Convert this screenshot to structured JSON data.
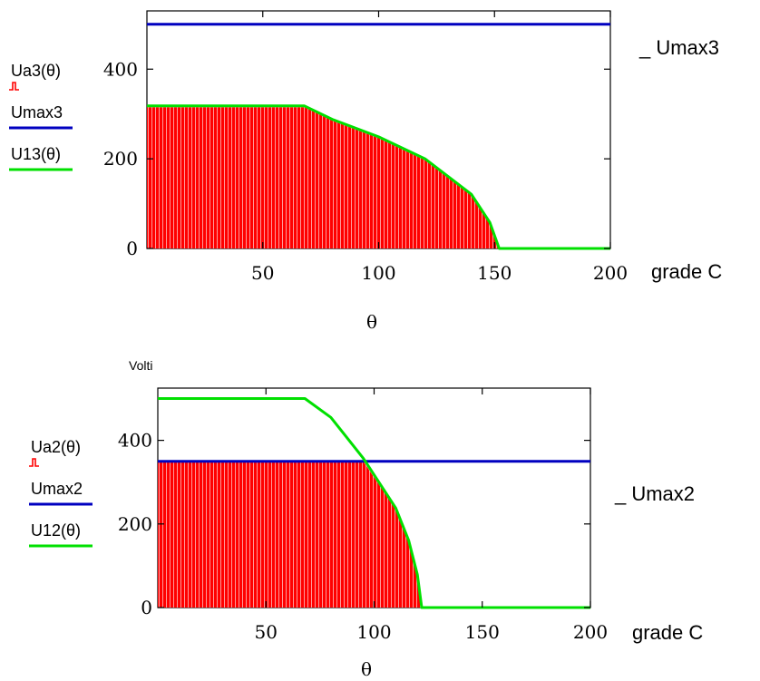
{
  "chart_data": [
    {
      "type": "area",
      "x_unit_label": "grade C",
      "x_var_label": "θ",
      "xlim": [
        0,
        200
      ],
      "ylim": [
        0,
        530
      ],
      "x_ticks": [
        50,
        100,
        150,
        200
      ],
      "y_ticks": [
        0,
        200,
        400
      ],
      "legend": [
        {
          "name": "Ua3(θ)",
          "color": "#ff0000"
        },
        {
          "name": "Umax3",
          "color": "#0000c0"
        },
        {
          "name": "U13(θ)",
          "color": "#00e000"
        }
      ],
      "right_label": "_ Umax3",
      "series": [
        {
          "name": "Ua3(θ)",
          "style": "hatched-fill",
          "color": "#ff0000",
          "x": [
            0,
            68,
            80,
            100,
            120,
            140,
            148,
            152
          ],
          "y": [
            315,
            315,
            285,
            246,
            197,
            118,
            55,
            0
          ]
        },
        {
          "name": "Umax3",
          "style": "line",
          "color": "#0000c0",
          "x": [
            0,
            200
          ],
          "y": [
            500,
            500
          ]
        },
        {
          "name": "U13(θ)",
          "style": "line",
          "color": "#00e000",
          "x": [
            0,
            68,
            80,
            100,
            120,
            140,
            148,
            152,
            200
          ],
          "y": [
            318,
            318,
            288,
            249,
            200,
            121,
            58,
            0,
            0
          ]
        }
      ]
    },
    {
      "type": "area",
      "ylabel": "Volti",
      "x_unit_label": "grade C",
      "x_var_label": "θ",
      "xlim": [
        0,
        200
      ],
      "ylim": [
        0,
        525
      ],
      "x_ticks": [
        50,
        100,
        150,
        200
      ],
      "y_ticks": [
        0,
        200,
        400
      ],
      "legend": [
        {
          "name": "Ua2(θ)",
          "color": "#ff0000"
        },
        {
          "name": "Umax2",
          "color": "#0000c0"
        },
        {
          "name": "U12(θ)",
          "color": "#00e000"
        }
      ],
      "right_label": "_ Umax2",
      "series": [
        {
          "name": "Ua2(θ)",
          "style": "hatched-fill",
          "color": "#ff0000",
          "x": [
            0,
            95,
            100,
            110,
            116,
            120,
            122
          ],
          "y": [
            350,
            350,
            311,
            235,
            157,
            76,
            0
          ]
        },
        {
          "name": "Umax2",
          "style": "line",
          "color": "#0000c0",
          "x": [
            0,
            200
          ],
          "y": [
            350,
            350
          ]
        },
        {
          "name": "U12(θ)",
          "style": "line",
          "color": "#00e000",
          "x": [
            0,
            68,
            80,
            95,
            110,
            116,
            120,
            122,
            200
          ],
          "y": [
            500,
            500,
            455,
            357,
            238,
            160,
            79,
            0,
            0
          ]
        }
      ]
    }
  ]
}
